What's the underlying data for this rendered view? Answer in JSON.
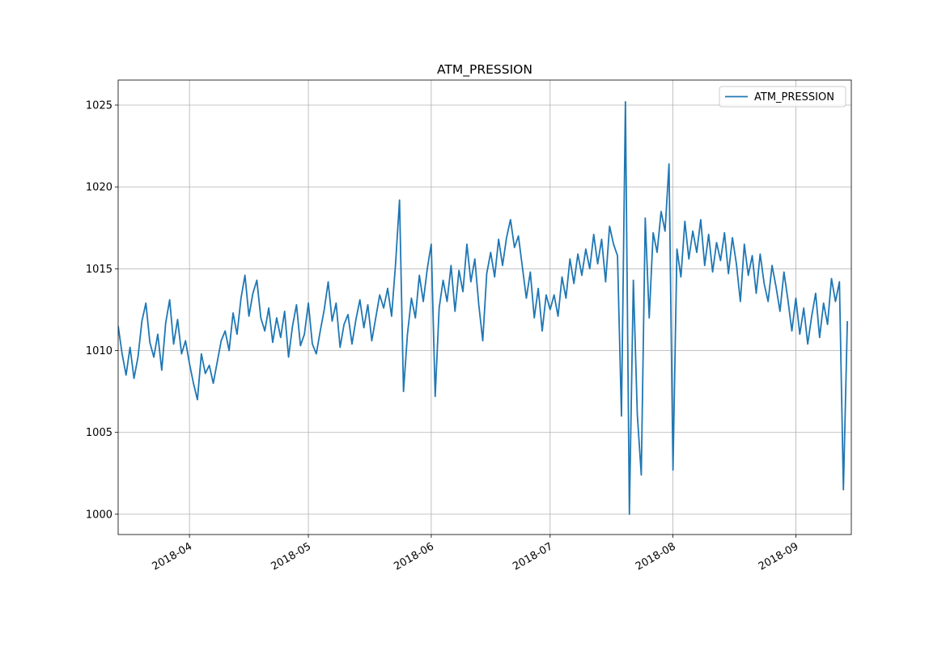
{
  "chart_data": {
    "type": "line",
    "title": "ATM_PRESSION",
    "x": [
      "2018-03-14",
      "2018-03-15",
      "2018-03-16",
      "2018-03-17",
      "2018-03-18",
      "2018-03-19",
      "2018-03-20",
      "2018-03-21",
      "2018-03-22",
      "2018-03-23",
      "2018-03-24",
      "2018-03-25",
      "2018-03-26",
      "2018-03-27",
      "2018-03-28",
      "2018-03-29",
      "2018-03-30",
      "2018-03-31",
      "2018-04-01",
      "2018-04-02",
      "2018-04-03",
      "2018-04-04",
      "2018-04-05",
      "2018-04-06",
      "2018-04-07",
      "2018-04-08",
      "2018-04-09",
      "2018-04-10",
      "2018-04-11",
      "2018-04-12",
      "2018-04-13",
      "2018-04-14",
      "2018-04-15",
      "2018-04-16",
      "2018-04-17",
      "2018-04-18",
      "2018-04-19",
      "2018-04-20",
      "2018-04-21",
      "2018-04-22",
      "2018-04-23",
      "2018-04-24",
      "2018-04-25",
      "2018-04-26",
      "2018-04-27",
      "2018-04-28",
      "2018-04-29",
      "2018-04-30",
      "2018-05-01",
      "2018-05-02",
      "2018-05-03",
      "2018-05-04",
      "2018-05-05",
      "2018-05-06",
      "2018-05-07",
      "2018-05-08",
      "2018-05-09",
      "2018-05-10",
      "2018-05-11",
      "2018-05-12",
      "2018-05-13",
      "2018-05-14",
      "2018-05-15",
      "2018-05-16",
      "2018-05-17",
      "2018-05-18",
      "2018-05-19",
      "2018-05-20",
      "2018-05-21",
      "2018-05-22",
      "2018-05-23",
      "2018-05-24",
      "2018-05-25",
      "2018-05-26",
      "2018-05-27",
      "2018-05-28",
      "2018-05-29",
      "2018-05-30",
      "2018-05-31",
      "2018-06-01",
      "2018-06-02",
      "2018-06-03",
      "2018-06-04",
      "2018-06-05",
      "2018-06-06",
      "2018-06-07",
      "2018-06-08",
      "2018-06-09",
      "2018-06-10",
      "2018-06-11",
      "2018-06-12",
      "2018-06-13",
      "2018-06-14",
      "2018-06-15",
      "2018-06-16",
      "2018-06-17",
      "2018-06-18",
      "2018-06-19",
      "2018-06-20",
      "2018-06-21",
      "2018-06-22",
      "2018-06-23",
      "2018-06-24",
      "2018-06-25",
      "2018-06-26",
      "2018-06-27",
      "2018-06-28",
      "2018-06-29",
      "2018-06-30",
      "2018-07-01",
      "2018-07-02",
      "2018-07-03",
      "2018-07-04",
      "2018-07-05",
      "2018-07-06",
      "2018-07-07",
      "2018-07-08",
      "2018-07-09",
      "2018-07-10",
      "2018-07-11",
      "2018-07-12",
      "2018-07-13",
      "2018-07-14",
      "2018-07-15",
      "2018-07-16",
      "2018-07-17",
      "2018-07-18",
      "2018-07-19",
      "2018-07-20",
      "2018-07-21",
      "2018-07-22",
      "2018-07-23",
      "2018-07-24",
      "2018-07-25",
      "2018-07-26",
      "2018-07-27",
      "2018-07-28",
      "2018-07-29",
      "2018-07-30",
      "2018-07-31",
      "2018-08-01",
      "2018-08-02",
      "2018-08-03",
      "2018-08-04",
      "2018-08-05",
      "2018-08-06",
      "2018-08-07",
      "2018-08-08",
      "2018-08-09",
      "2018-08-10",
      "2018-08-11",
      "2018-08-12",
      "2018-08-13",
      "2018-08-14",
      "2018-08-15",
      "2018-08-16",
      "2018-08-17",
      "2018-08-18",
      "2018-08-19",
      "2018-08-20",
      "2018-08-21",
      "2018-08-22",
      "2018-08-23",
      "2018-08-24",
      "2018-08-25",
      "2018-08-26",
      "2018-08-27",
      "2018-08-28",
      "2018-08-29",
      "2018-08-30",
      "2018-08-31",
      "2018-09-01",
      "2018-09-02",
      "2018-09-03",
      "2018-09-04",
      "2018-09-05",
      "2018-09-06",
      "2018-09-07",
      "2018-09-08",
      "2018-09-09",
      "2018-09-10",
      "2018-09-11",
      "2018-09-12",
      "2018-09-13",
      "2018-09-14"
    ],
    "series": [
      {
        "name": "ATM_PRESSION",
        "color": "#1f77b4",
        "values": [
          1011.5,
          1009.8,
          1008.5,
          1010.2,
          1008.3,
          1009.6,
          1011.8,
          1012.9,
          1010.5,
          1009.6,
          1011.0,
          1008.8,
          1011.7,
          1013.1,
          1010.4,
          1011.9,
          1009.8,
          1010.6,
          1009.2,
          1008.0,
          1007.0,
          1009.8,
          1008.6,
          1009.1,
          1008.0,
          1009.3,
          1010.6,
          1011.2,
          1010.0,
          1012.3,
          1011.0,
          1013.2,
          1014.6,
          1012.1,
          1013.5,
          1014.3,
          1012.0,
          1011.2,
          1012.6,
          1010.5,
          1012.0,
          1010.8,
          1012.4,
          1009.6,
          1011.5,
          1012.8,
          1010.3,
          1011.0,
          1012.9,
          1010.4,
          1009.8,
          1011.2,
          1012.5,
          1014.2,
          1011.8,
          1012.9,
          1010.2,
          1011.6,
          1012.2,
          1010.4,
          1011.9,
          1013.1,
          1011.4,
          1012.8,
          1010.6,
          1012.0,
          1013.4,
          1012.6,
          1013.8,
          1012.1,
          1015.3,
          1019.2,
          1007.5,
          1011.0,
          1013.2,
          1012.0,
          1014.6,
          1013.0,
          1015.0,
          1016.5,
          1007.2,
          1012.6,
          1014.3,
          1013.0,
          1015.2,
          1012.4,
          1014.9,
          1013.6,
          1016.5,
          1014.2,
          1015.6,
          1012.8,
          1010.6,
          1014.7,
          1016.0,
          1014.5,
          1016.8,
          1015.2,
          1016.9,
          1018.0,
          1016.3,
          1017.0,
          1015.1,
          1013.2,
          1014.8,
          1012.0,
          1013.8,
          1011.2,
          1013.4,
          1012.5,
          1013.4,
          1012.1,
          1014.5,
          1013.2,
          1015.6,
          1014.1,
          1015.9,
          1014.6,
          1016.2,
          1015.0,
          1017.1,
          1015.3,
          1016.8,
          1014.2,
          1017.6,
          1016.5,
          1015.8,
          1006.0,
          1025.2,
          1000.0,
          1014.3,
          1006.1,
          1002.4,
          1018.1,
          1012.0,
          1017.2,
          1016.0,
          1018.5,
          1017.3,
          1021.4,
          1002.7,
          1016.2,
          1014.5,
          1017.9,
          1015.6,
          1017.3,
          1016.0,
          1018.0,
          1015.2,
          1017.1,
          1014.8,
          1016.6,
          1015.5,
          1017.2,
          1014.7,
          1016.9,
          1015.3,
          1013.0,
          1016.5,
          1014.6,
          1015.8,
          1013.5,
          1015.9,
          1014.1,
          1013.0,
          1015.2,
          1013.9,
          1012.4,
          1014.8,
          1013.1,
          1011.2,
          1013.2,
          1011.0,
          1012.6,
          1010.4,
          1012.1,
          1013.5,
          1010.8,
          1012.9,
          1011.6,
          1014.4,
          1013.0,
          1014.2,
          1001.5,
          1011.8
        ]
      }
    ],
    "xlim": [
      "2018-03-14",
      "2018-09-15"
    ],
    "xticks": [
      {
        "value": "2018-04-01",
        "label": "2018-04"
      },
      {
        "value": "2018-05-01",
        "label": "2018-05"
      },
      {
        "value": "2018-06-01",
        "label": "2018-06"
      },
      {
        "value": "2018-07-01",
        "label": "2018-07"
      },
      {
        "value": "2018-08-01",
        "label": "2018-08"
      },
      {
        "value": "2018-09-01",
        "label": "2018-09"
      }
    ],
    "ylim": [
      998.76,
      1026.53
    ],
    "yticks": [
      1000,
      1005,
      1010,
      1015,
      1020,
      1025
    ],
    "grid": true,
    "legend": "upper right"
  }
}
